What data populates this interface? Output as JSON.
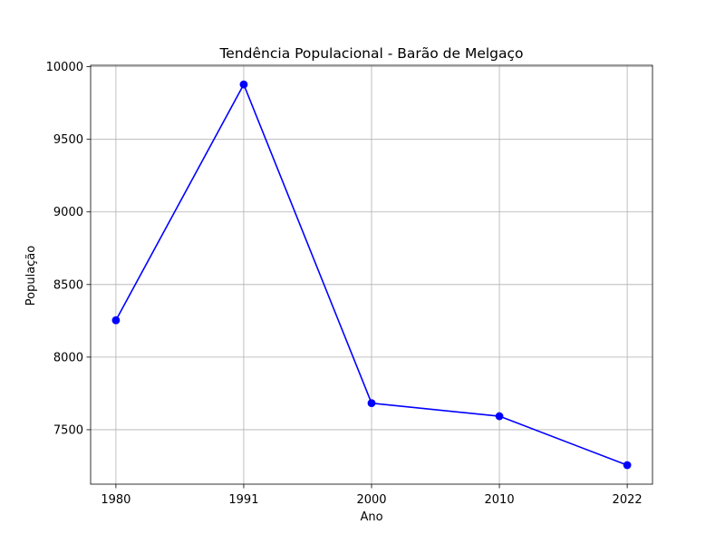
{
  "chart_data": {
    "type": "line",
    "title": "Tendência Populacional - Barão de Melgaço",
    "xlabel": "Ano",
    "ylabel": "População",
    "categories": [
      "1980",
      "1991",
      "2000",
      "2010",
      "2022"
    ],
    "series": [
      {
        "values": [
          8254,
          9878,
          7683,
          7593,
          7256
        ],
        "color": "#0000ff",
        "marker": "circle"
      }
    ],
    "ylim": [
      7125,
      10010
    ],
    "y_ticks": [
      7500,
      8000,
      8500,
      9000,
      9500,
      10000
    ],
    "grid": true
  }
}
